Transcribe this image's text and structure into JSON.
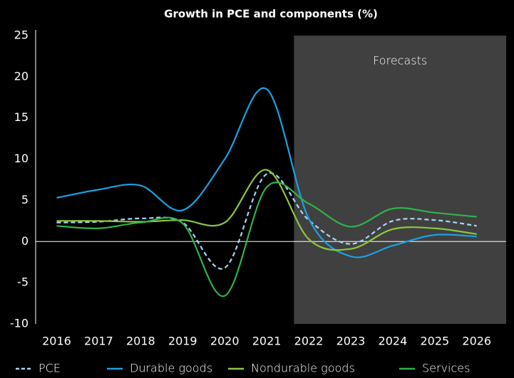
{
  "chart_data": {
    "type": "line",
    "title": "Growth in PCE and components (%)",
    "x": [
      2016,
      2017,
      2018,
      2019,
      2020,
      2021,
      2022,
      2023,
      2024,
      2025,
      2026
    ],
    "xlim": [
      2015.5,
      2026.7
    ],
    "xticks": [
      2016,
      2017,
      2018,
      2019,
      2020,
      2021,
      2022,
      2023,
      2024,
      2025,
      2026
    ],
    "ylim": [
      -10,
      25
    ],
    "yticks": [
      -10,
      -5,
      0,
      5,
      10,
      15,
      20,
      25
    ],
    "shaded_region": {
      "label": "Forecasts",
      "x": [
        2021.65,
        2026.7
      ],
      "color": "#404040"
    },
    "legend": "bottom",
    "series": [
      {
        "name": "PCE",
        "color": "#a6d8f5",
        "dashed": true,
        "values": [
          2.3,
          2.4,
          2.8,
          2.3,
          -3.2,
          8.2,
          2.6,
          -0.3,
          2.5,
          2.6,
          1.9
        ]
      },
      {
        "name": "Durable goods",
        "color": "#1ba1e2",
        "values": [
          5.3,
          6.3,
          6.8,
          3.8,
          10,
          18.5,
          2.8,
          -1.8,
          -0.5,
          0.8,
          0.6
        ]
      },
      {
        "name": "Nondurable goods",
        "color": "#8dc63f",
        "values": [
          2.5,
          2.5,
          2.4,
          2.6,
          2.3,
          8.7,
          0.3,
          -0.9,
          1.5,
          1.6,
          0.9
        ]
      },
      {
        "name": "Services",
        "color": "#2fb34a",
        "values": [
          1.9,
          1.6,
          2.3,
          2.2,
          -6.6,
          6.6,
          4.6,
          1.8,
          4.0,
          3.5,
          3.0
        ]
      }
    ]
  }
}
